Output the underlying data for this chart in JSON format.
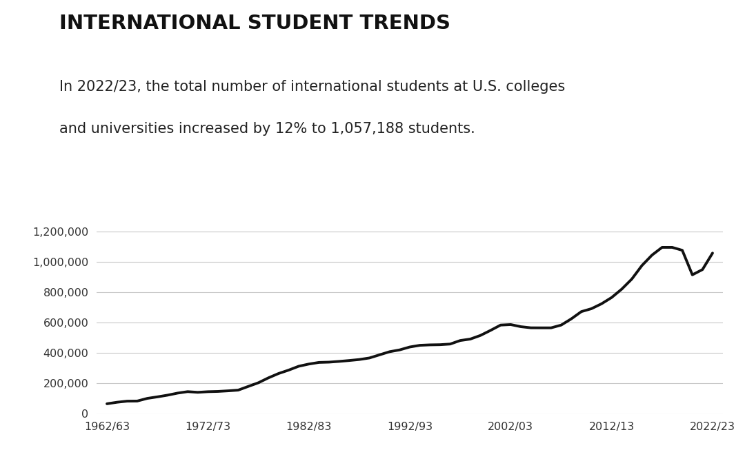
{
  "title": "INTERNATIONAL STUDENT TRENDS",
  "subtitle_line1": "In 2022/23, the total number of international students at U.S. colleges",
  "subtitle_line2": "and universities increased by 12% to 1,057,188 students.",
  "background_color": "#ffffff",
  "line_color": "#111111",
  "line_width": 2.8,
  "x_labels": [
    "1962/63",
    "1972/73",
    "1982/83",
    "1992/93",
    "2002/03",
    "2012/13",
    "2022/23"
  ],
  "x_label_years": [
    1962,
    1972,
    1982,
    1992,
    2002,
    2012,
    2022
  ],
  "xlim": [
    1961,
    2023
  ],
  "ylim": [
    0,
    1300000
  ],
  "yticks": [
    0,
    200000,
    400000,
    600000,
    800000,
    1000000,
    1200000
  ],
  "years": [
    1962,
    1963,
    1964,
    1965,
    1966,
    1967,
    1968,
    1969,
    1970,
    1971,
    1972,
    1973,
    1974,
    1975,
    1976,
    1977,
    1978,
    1979,
    1980,
    1981,
    1982,
    1983,
    1984,
    1985,
    1986,
    1987,
    1988,
    1989,
    1990,
    1991,
    1992,
    1993,
    1994,
    1995,
    1996,
    1997,
    1998,
    1999,
    2000,
    2001,
    2002,
    2003,
    2004,
    2005,
    2006,
    2007,
    2008,
    2009,
    2010,
    2011,
    2012,
    2013,
    2014,
    2015,
    2016,
    2017,
    2018,
    2019,
    2020,
    2021,
    2022
  ],
  "values": [
    64705,
    74814,
    82045,
    82709,
    100262,
    110315,
    121362,
    134959,
    144708,
    140126,
    144298,
    146097,
    150000,
    154580,
    179000,
    203068,
    235509,
    263938,
    286343,
    311882,
    326299,
    336985,
    338894,
    343777,
    349609,
    356187,
    366354,
    386851,
    407529,
    419585,
    438618,
    449749,
    452635,
    453787,
    457984,
    481280,
    490933,
    514723,
    547867,
    582996,
    586323,
    572509,
    565039,
    564766,
    564766,
    582984,
    623805,
    671616,
    690923,
    723277,
    764495,
    819644,
    886052,
    974926,
    1043839,
    1094792,
    1094792,
    1075496,
    914095,
    948519,
    1057188
  ]
}
